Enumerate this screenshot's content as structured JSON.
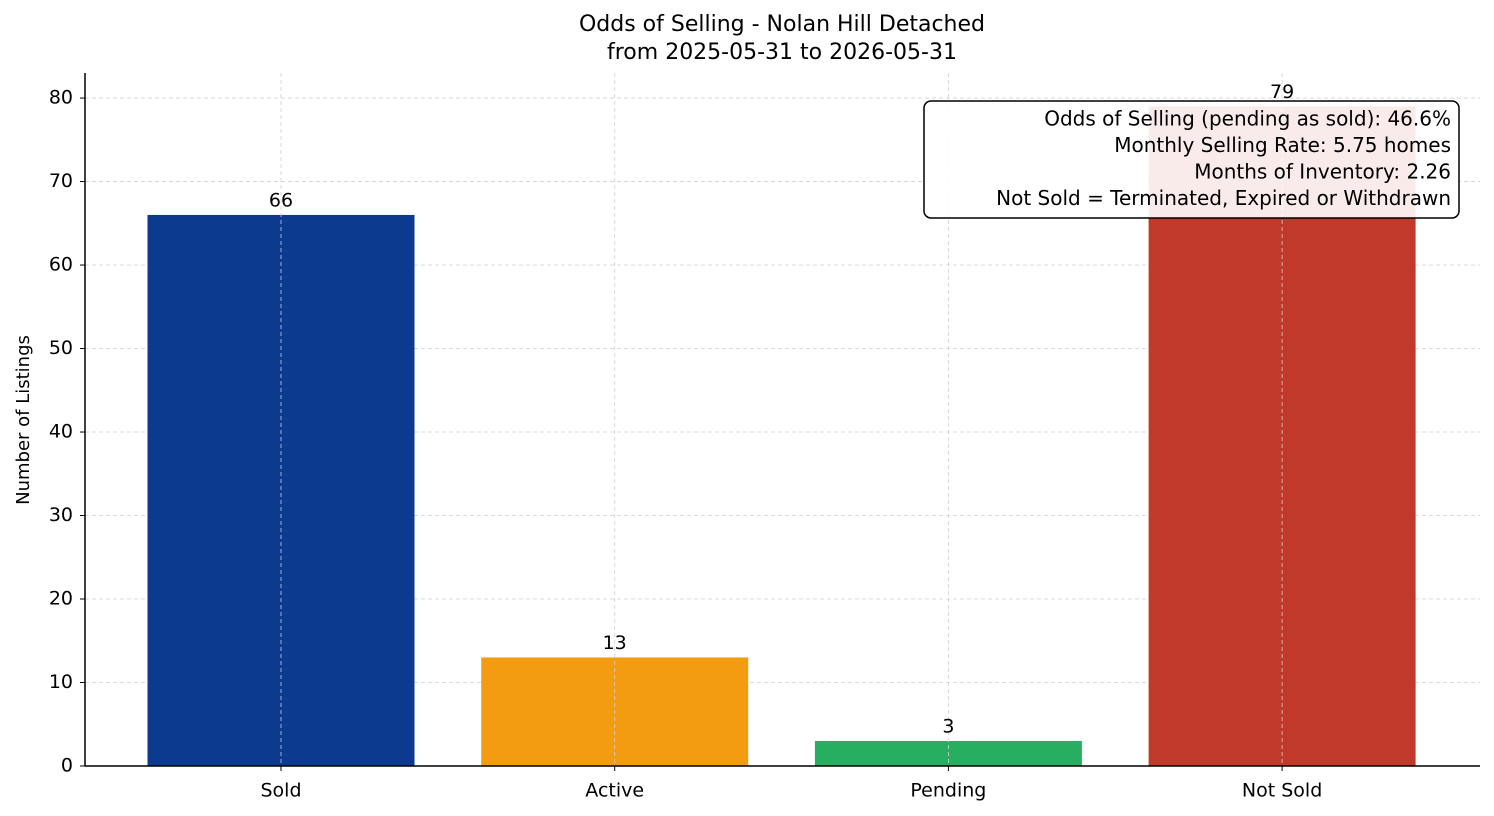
{
  "chart_data": {
    "type": "bar",
    "title": "Odds of Selling - Nolan Hill Detached",
    "subtitle": "from 2025-05-31 to 2026-05-31",
    "y_label": "Number of Listings",
    "categories": [
      "Sold",
      "Active",
      "Pending",
      "Not Sold"
    ],
    "values": [
      66,
      13,
      3,
      79
    ],
    "colors": [
      "#0b3a8f",
      "#f39c12",
      "#27ae60",
      "#c0392b"
    ],
    "ylim": [
      0,
      83
    ],
    "yticks": [
      0,
      10,
      20,
      30,
      40,
      50,
      60,
      70,
      80
    ],
    "grid": true,
    "annotation": [
      "Odds of Selling (pending as sold): 46.6%",
      "Monthly Selling Rate: 5.75 homes",
      "Months of Inventory: 2.26",
      "Not Sold = Terminated, Expired or Withdrawn"
    ]
  }
}
